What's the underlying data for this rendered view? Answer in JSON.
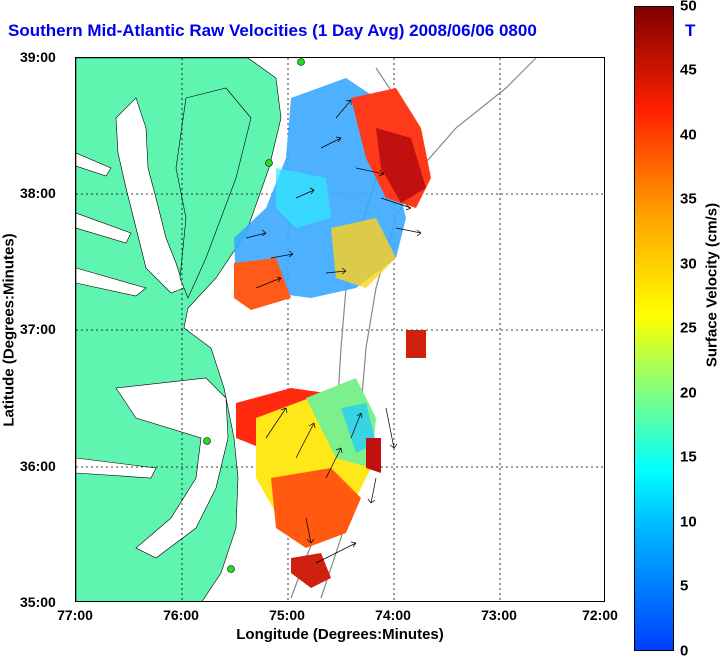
{
  "title": "Southern Mid-Atlantic Raw Velocities (1 Day Avg) 2008/06/06 0800",
  "title_suffix": "T",
  "x_axis": {
    "label": "Longitude (Degrees:Minutes)",
    "ticks": [
      "77:00",
      "76:00",
      "75:00",
      "74:00",
      "73:00",
      "72:00"
    ]
  },
  "y_axis": {
    "label": "Latitude (Degrees:Minutes)",
    "ticks": [
      "39:00",
      "38:00",
      "37:00",
      "36:00",
      "35:00"
    ]
  },
  "colorbar": {
    "label": "Surface Velocity (cm/s)",
    "ticks": [
      "50",
      "45",
      "40",
      "35",
      "30",
      "25",
      "20",
      "15",
      "10",
      "5",
      "0"
    ],
    "min": 0,
    "max": 50
  },
  "colors": {
    "land": "#5ff5b0",
    "title": "#0000ee",
    "grid": "#000000"
  }
}
